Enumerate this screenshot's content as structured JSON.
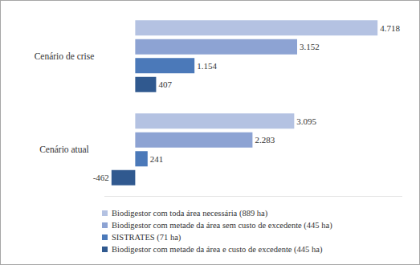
{
  "chart_data": {
    "type": "bar",
    "orientation": "horizontal",
    "data_labels": true,
    "grid": false,
    "legend": "bottom",
    "tick_labels": "y",
    "categories": [
      "Cenário de crise",
      "Cenário atual"
    ],
    "xlim": [
      -600,
      5200
    ],
    "series": [
      {
        "name": "Biodigestor com toda área necessária (889 ha)",
        "color": "#b4c2e2",
        "values": [
          4718,
          3095
        ],
        "value_labels": [
          "4.718",
          "3.095"
        ]
      },
      {
        "name": "Biodigestor com metade da área sem custo de excedente (445 ha)",
        "color": "#8da3d3",
        "values": [
          3152,
          2283
        ],
        "value_labels": [
          "3.152",
          "2.283"
        ]
      },
      {
        "name": "SISTRATES (71 ha)",
        "color": "#4b79b9",
        "values": [
          1154,
          241
        ],
        "value_labels": [
          "1.154",
          "241"
        ]
      },
      {
        "name": "Biodigestor com metade da área e custo de excedente (445 ha)",
        "color": "#30598f",
        "values": [
          407,
          -462
        ],
        "value_labels": [
          "407",
          "-462"
        ]
      }
    ]
  }
}
